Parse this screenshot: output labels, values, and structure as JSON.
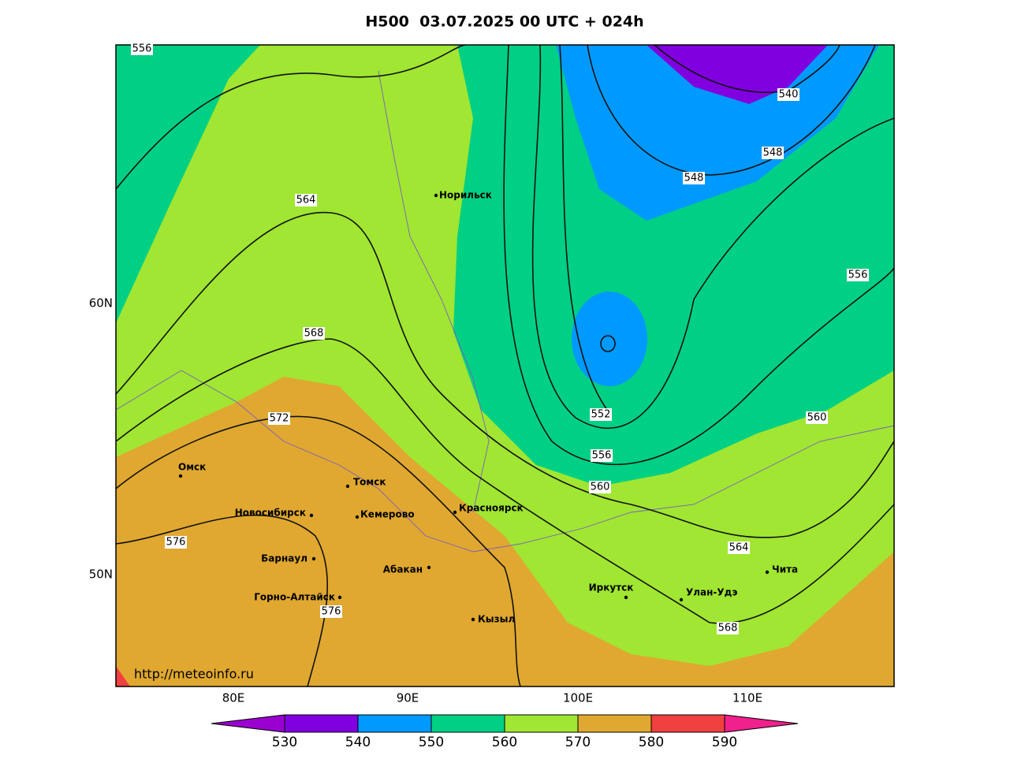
{
  "title": "H500  03.07.2025 00 UTC + 024h",
  "latitude_labels": [
    "60N",
    "50N"
  ],
  "longitude_labels": [
    "80E",
    "90E",
    "100E",
    "110E"
  ],
  "cities": [
    "Норильск",
    "Омск",
    "Томск",
    "Новосибирск",
    "Кемерово",
    "Красноярск",
    "Барнаул",
    "Абакан",
    "Горно-Алтайск",
    "Кызыл",
    "Иркутск",
    "Улан-Удэ",
    "Чита"
  ],
  "contour_labels": [
    "556",
    "564",
    "568",
    "572",
    "576",
    "576",
    "540",
    "548",
    "548",
    "556",
    "552",
    "556",
    "560",
    "560",
    "564",
    "568"
  ],
  "source": "http://meteoinfo.ru",
  "colorbar": {
    "ticks": [
      530,
      540,
      550,
      560,
      570,
      580,
      590
    ],
    "colors": [
      "#9a00d0",
      "#8000e0",
      "#0099ff",
      "#00d084",
      "#a0e632",
      "#e0a830",
      "#f04040",
      "#f0208c"
    ]
  }
}
